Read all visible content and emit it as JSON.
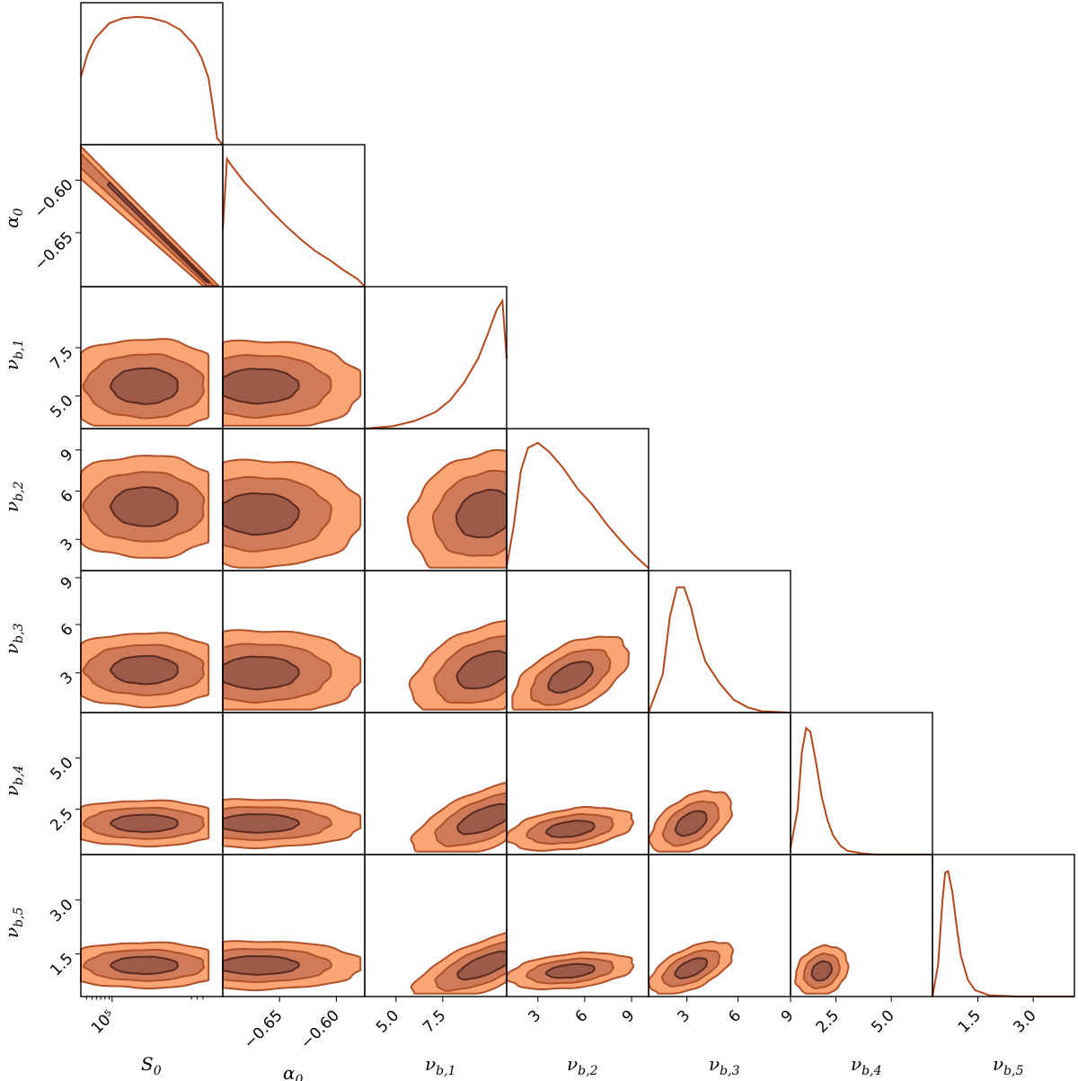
{
  "chart_data": {
    "type": "corner",
    "colors": {
      "line": "#b5471d",
      "fill_outer": "#fca574",
      "fill_mid": "#cf7b5a",
      "fill_inner": "#9c5a48",
      "contour_stroke": "#b0502a",
      "inner_stroke": "#5a2a20"
    },
    "parameters": [
      {
        "key": "S0",
        "label": "S0",
        "label_base": "S",
        "label_sub": "0",
        "ticks": [
          "10⁵"
        ],
        "tick_positions": [
          0.22
        ],
        "log_minor": true
      },
      {
        "key": "alpha0",
        "label": "α0",
        "label_base": "α",
        "label_sub": "0",
        "ticks": [
          "−0.65",
          "−0.60"
        ],
        "tick_positions": [
          0.4,
          0.8
        ]
      },
      {
        "key": "nu_b1",
        "label": "νb,1",
        "label_base": "ν",
        "label_sub": "b,1",
        "ticks": [
          "5.0",
          "7.5"
        ],
        "tick_positions": [
          0.22,
          0.55
        ]
      },
      {
        "key": "nu_b2",
        "label": "νb,2",
        "label_base": "ν",
        "label_sub": "b,2",
        "ticks": [
          "3",
          "6",
          "9"
        ],
        "tick_positions": [
          0.22,
          0.55,
          0.88
        ]
      },
      {
        "key": "nu_b3",
        "label": "νb,3",
        "label_base": "ν",
        "label_sub": "b,3",
        "ticks": [
          "3",
          "6",
          "9"
        ],
        "tick_positions": [
          0.27,
          0.63,
          1.0
        ]
      },
      {
        "key": "nu_b4",
        "label": "νb,4",
        "label_base": "ν",
        "label_sub": "b,4",
        "ticks": [
          "2.5",
          "5.0"
        ],
        "tick_positions": [
          0.32,
          0.71
        ]
      },
      {
        "key": "nu_b5",
        "label": "νb,5",
        "label_base": "ν",
        "label_sub": "b,5",
        "ticks": [
          "1.5",
          "3.0"
        ],
        "tick_positions": [
          0.32,
          0.71
        ]
      }
    ],
    "diagonal_histograms": [
      {
        "param": "S0",
        "x": [
          0,
          0.05,
          0.1,
          0.2,
          0.3,
          0.4,
          0.5,
          0.6,
          0.7,
          0.8,
          0.85,
          0.9,
          0.93,
          0.96,
          1.0
        ],
        "y": [
          0.53,
          0.72,
          0.83,
          0.95,
          0.99,
          1.0,
          0.99,
          0.96,
          0.9,
          0.78,
          0.68,
          0.52,
          0.3,
          0.05,
          0.0
        ]
      },
      {
        "param": "alpha0",
        "x": [
          0,
          0.03,
          0.06,
          0.15,
          0.25,
          0.35,
          0.45,
          0.55,
          0.65,
          0.75,
          0.85,
          0.95,
          1.0
        ],
        "y": [
          0.45,
          1.0,
          0.95,
          0.82,
          0.7,
          0.58,
          0.47,
          0.37,
          0.28,
          0.21,
          0.13,
          0.06,
          0.0
        ]
      },
      {
        "param": "nu_b1",
        "x": [
          0,
          0.2,
          0.35,
          0.5,
          0.6,
          0.7,
          0.8,
          0.87,
          0.93,
          0.97,
          1.0
        ],
        "y": [
          0.0,
          0.02,
          0.06,
          0.13,
          0.22,
          0.36,
          0.55,
          0.75,
          0.93,
          1.0,
          0.55
        ]
      },
      {
        "param": "nu_b2",
        "x": [
          0,
          0.05,
          0.1,
          0.15,
          0.22,
          0.3,
          0.4,
          0.5,
          0.6,
          0.7,
          0.8,
          0.9,
          1.0
        ],
        "y": [
          0.03,
          0.35,
          0.78,
          0.96,
          1.0,
          0.93,
          0.8,
          0.64,
          0.52,
          0.37,
          0.24,
          0.12,
          0.02
        ]
      },
      {
        "param": "nu_b3",
        "x": [
          0,
          0.1,
          0.15,
          0.2,
          0.25,
          0.3,
          0.35,
          0.4,
          0.5,
          0.6,
          0.7,
          0.8,
          1.0
        ],
        "y": [
          0.0,
          0.3,
          0.75,
          0.98,
          0.98,
          0.82,
          0.58,
          0.4,
          0.23,
          0.1,
          0.04,
          0.01,
          0.0
        ]
      },
      {
        "param": "nu_b4",
        "x": [
          0,
          0.05,
          0.08,
          0.11,
          0.14,
          0.18,
          0.22,
          0.26,
          0.3,
          0.35,
          0.4,
          0.5,
          0.6,
          1.0
        ],
        "y": [
          0.05,
          0.35,
          0.8,
          0.99,
          0.96,
          0.72,
          0.45,
          0.27,
          0.15,
          0.07,
          0.03,
          0.01,
          0.0,
          0.0
        ]
      },
      {
        "param": "nu_b5",
        "x": [
          0,
          0.04,
          0.07,
          0.09,
          0.11,
          0.14,
          0.17,
          0.2,
          0.25,
          0.3,
          0.4,
          0.6,
          1.0
        ],
        "y": [
          0.0,
          0.25,
          0.75,
          0.97,
          0.98,
          0.82,
          0.55,
          0.32,
          0.13,
          0.05,
          0.01,
          0.0,
          0.0
        ]
      }
    ]
  }
}
